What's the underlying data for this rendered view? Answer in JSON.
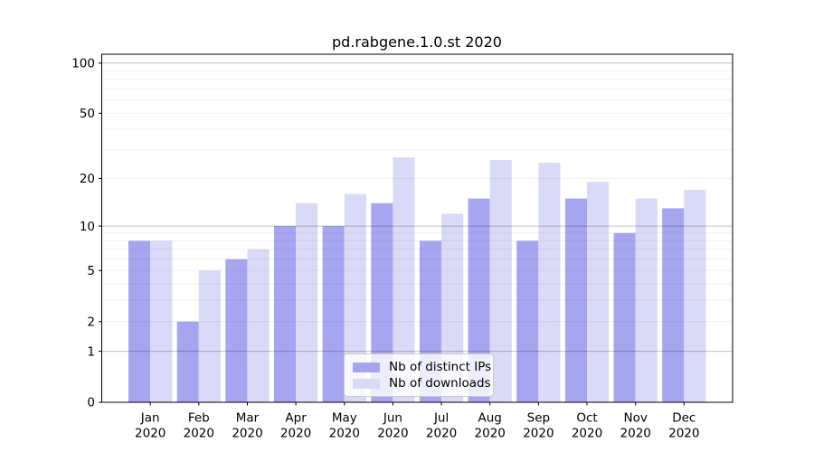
{
  "figure": {
    "background": "#ffffff"
  },
  "chart_data": {
    "type": "bar",
    "title": "pd.rabgene.1.0.st 2020",
    "xlabel": "",
    "ylabel": "",
    "categories": [
      "Jan 2020",
      "Feb 2020",
      "Mar 2020",
      "Apr 2020",
      "May 2020",
      "Jun 2020",
      "Jul 2020",
      "Aug 2020",
      "Sep 2020",
      "Oct 2020",
      "Nov 2020",
      "Dec 2020"
    ],
    "series": [
      {
        "name": "Nb of distinct IPs",
        "color": "#a5a5f0",
        "values": [
          8,
          2,
          6,
          10,
          10,
          14,
          8,
          15,
          8,
          15,
          9,
          13
        ]
      },
      {
        "name": "Nb of downloads",
        "color": "#d9d9f8",
        "values": [
          8,
          5,
          7,
          14,
          16,
          27,
          12,
          26,
          25,
          19,
          15,
          17
        ]
      }
    ],
    "yscale": "log1p",
    "ylim": [
      0,
      113
    ],
    "yticks": [
      0,
      1,
      2,
      5,
      10,
      20,
      50,
      100
    ],
    "gridlines": {
      "major": [
        1,
        10,
        100
      ],
      "minor": [
        2,
        3,
        4,
        5,
        6,
        7,
        8,
        9,
        20,
        30,
        40,
        50,
        60,
        70,
        80,
        90
      ]
    },
    "grid": true,
    "legend_position": "lower center",
    "axis_color": "#000000",
    "major_grid_color": "rgba(0,0,0,0.24)",
    "minor_grid_color": "rgba(0,0,0,0.06)"
  }
}
